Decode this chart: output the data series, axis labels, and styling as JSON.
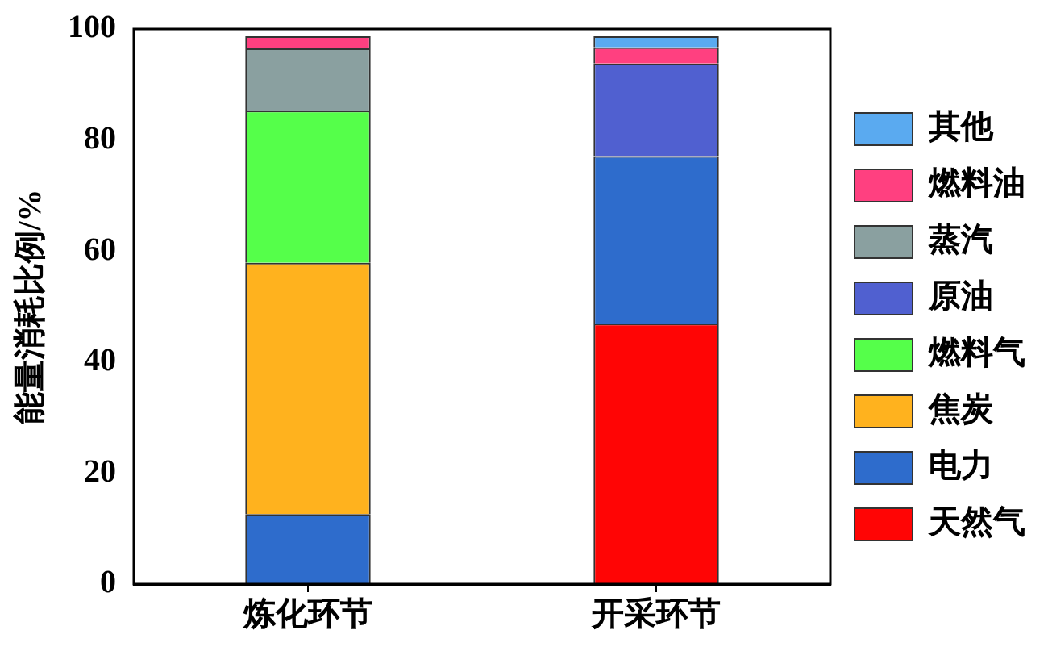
{
  "chart_data": {
    "type": "bar",
    "stacked": true,
    "ylabel": "能量消耗比例/%",
    "categories": [
      "炼化环节",
      "开采环节"
    ],
    "ylim": [
      0,
      100
    ],
    "yticks": [
      0,
      20,
      40,
      60,
      80,
      100
    ],
    "grid": false,
    "legend": "right",
    "series": [
      {
        "name": "天然气",
        "color": "#ff0505",
        "values": [
          null,
          46.9
        ]
      },
      {
        "name": "电力",
        "color": "#2e6ccc",
        "values": [
          12.6,
          30.2
        ]
      },
      {
        "name": "焦炭",
        "color": "#ffb21e",
        "values": [
          45.3,
          null
        ]
      },
      {
        "name": "燃料气",
        "color": "#55ff4a",
        "values": [
          27.4,
          null
        ]
      },
      {
        "name": "原油",
        "color": "#5060d0",
        "values": [
          null,
          16.7
        ]
      },
      {
        "name": "蒸汽",
        "color": "#8aa0a0",
        "values": [
          11.2,
          null
        ]
      },
      {
        "name": "燃料油",
        "color": "#ff4080",
        "values": [
          2.2,
          2.9
        ]
      },
      {
        "name": "其他",
        "color": "#5aaaf0",
        "values": [
          null,
          2.0
        ]
      }
    ]
  }
}
